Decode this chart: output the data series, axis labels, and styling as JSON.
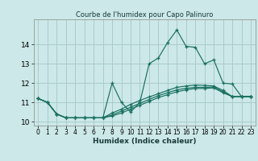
{
  "title": "Courbe de l'humidex pour Capo Palinuro",
  "xlabel": "Humidex (Indice chaleur)",
  "background_color": "#cce8e8",
  "grid_color": "#aacccc",
  "line_color": "#1a7060",
  "xlim": [
    -0.5,
    23.5
  ],
  "ylim": [
    9.8,
    15.3
  ],
  "yticks": [
    10,
    11,
    12,
    13,
    14
  ],
  "xticks": [
    0,
    1,
    2,
    3,
    4,
    5,
    6,
    7,
    8,
    9,
    10,
    11,
    12,
    13,
    14,
    15,
    16,
    17,
    18,
    19,
    20,
    21,
    22,
    23
  ],
  "series": [
    [
      11.2,
      11.0,
      10.4,
      10.2,
      10.2,
      10.2,
      10.2,
      10.2,
      12.0,
      11.0,
      10.5,
      11.0,
      13.0,
      13.3,
      14.1,
      14.75,
      13.9,
      13.85,
      13.0,
      13.2,
      12.0,
      11.95,
      11.3,
      11.3
    ],
    [
      11.2,
      11.0,
      10.4,
      10.2,
      10.2,
      10.2,
      10.2,
      10.2,
      10.3,
      10.45,
      10.65,
      10.85,
      11.05,
      11.25,
      11.4,
      11.55,
      11.65,
      11.72,
      11.72,
      11.75,
      11.5,
      11.3,
      11.3,
      11.3
    ],
    [
      11.2,
      11.0,
      10.4,
      10.2,
      10.2,
      10.2,
      10.2,
      10.2,
      10.35,
      10.55,
      10.75,
      10.95,
      11.15,
      11.35,
      11.5,
      11.65,
      11.73,
      11.78,
      11.78,
      11.8,
      11.55,
      11.3,
      11.3,
      11.3
    ],
    [
      11.2,
      11.0,
      10.4,
      10.2,
      10.2,
      10.2,
      10.2,
      10.2,
      10.45,
      10.65,
      10.9,
      11.1,
      11.28,
      11.45,
      11.62,
      11.78,
      11.85,
      11.9,
      11.88,
      11.85,
      11.62,
      11.3,
      11.3,
      11.3
    ]
  ]
}
